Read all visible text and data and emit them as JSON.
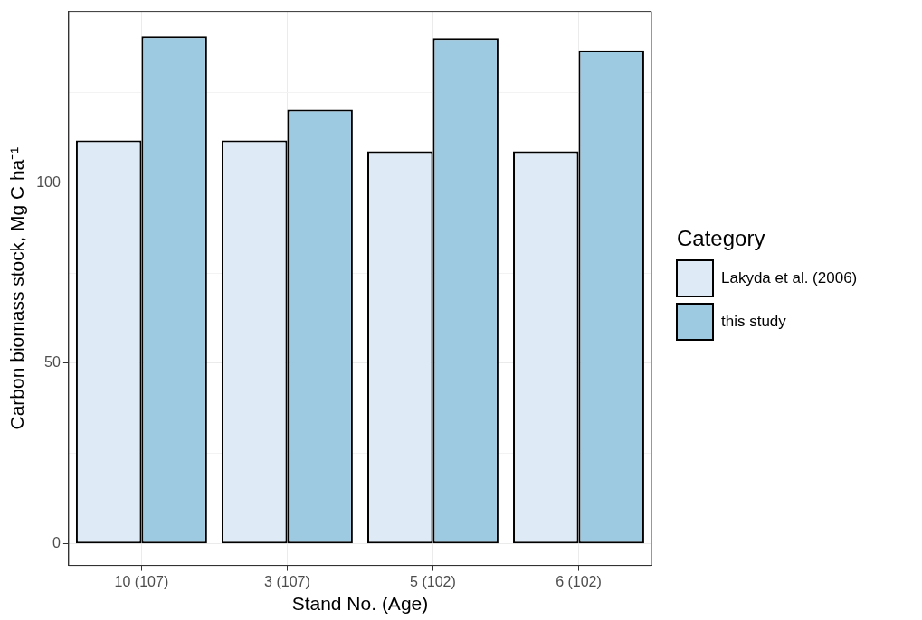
{
  "chart_data": {
    "type": "bar",
    "xlabel": "Stand No. (Age)",
    "ylabel": "Carbon biomass stock, Mg C ha⁻¹",
    "legend_title": "Category",
    "categories": [
      "10 (107)",
      "3 (107)",
      "5 (102)",
      "6 (102)"
    ],
    "series": [
      {
        "name": "Lakyda et al. (2006)",
        "color": "#deebf7",
        "values": [
          111.7,
          111.7,
          108.7,
          108.7
        ]
      },
      {
        "name": "this study",
        "color": "#9ecae1",
        "values": [
          140.6,
          120.2,
          140.1,
          136.7
        ]
      }
    ],
    "ylim": [
      -6,
      147.5
    ],
    "yticks": [
      0,
      {
        "value": 25,
        "label": null
      },
      50,
      {
        "value": 75,
        "label": null
      },
      100,
      {
        "value": 125,
        "label": null
      }
    ],
    "grid": true,
    "legend": "right"
  }
}
